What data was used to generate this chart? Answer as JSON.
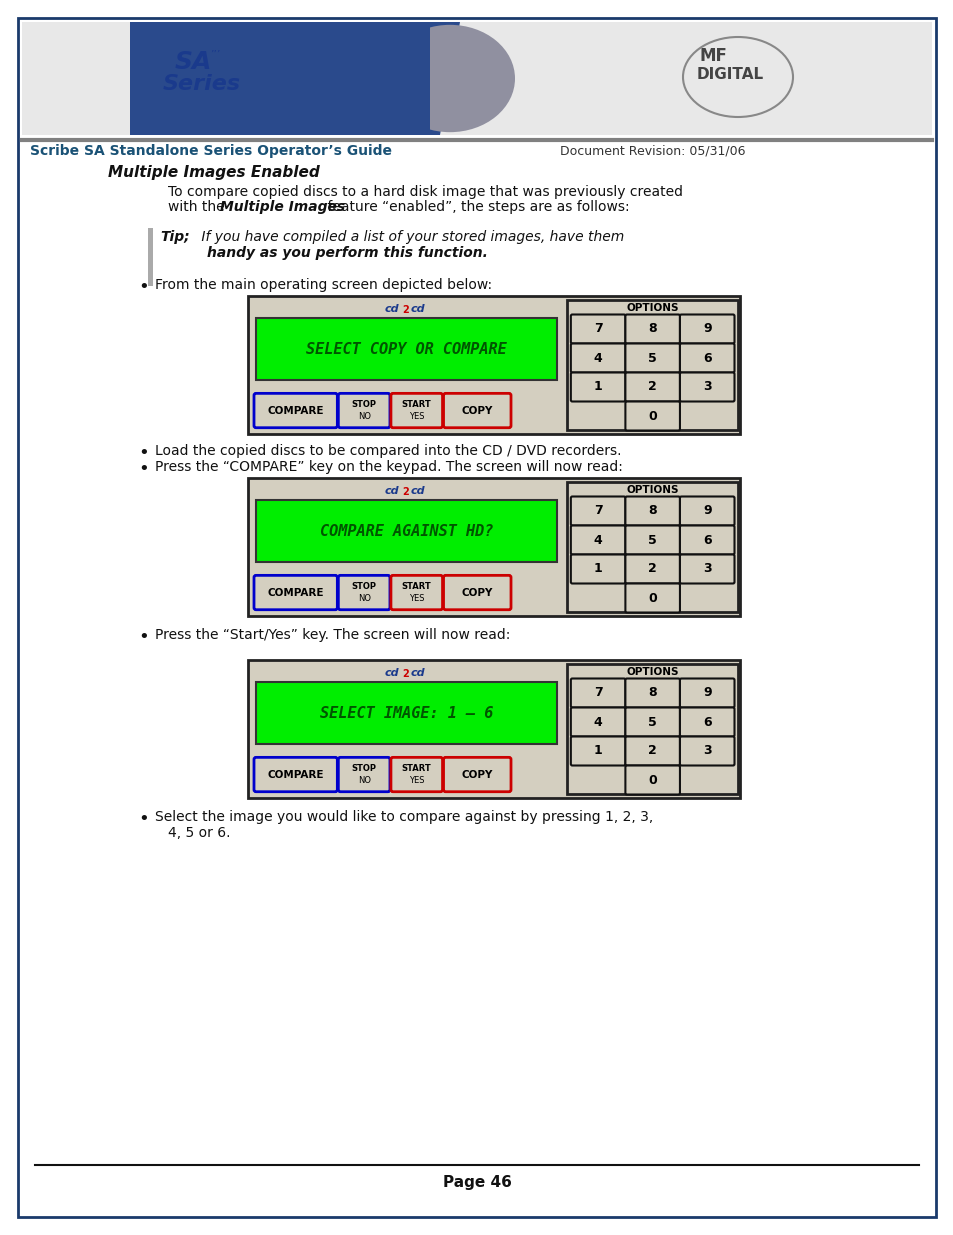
{
  "page_border_color": "#1a3a6b",
  "background_color": "#ffffff",
  "header_bg": "#e8e8e8",
  "header_title": "Scribe SA Standalone Series Operator’s Guide",
  "header_title_color": "#1a5276",
  "header_doc_rev": "Document Revision: 05/31/06",
  "header_doc_rev_color": "#333333",
  "sa_series_text_color": "#1a3a8c",
  "section_title": "Multiple Images Enabled",
  "screen1_text": "SELECT COPY OR COMPARE",
  "screen2_text": "COMPARE AGAINST HD?",
  "screen3_text": "SELECT IMAGE: 1 – 6",
  "bullet1": "From the main operating screen depicted below:",
  "bullet2": "Load the copied discs to be compared into the CD / DVD recorders.",
  "bullet3": "Press the “COMPARE” key on the keypad. The screen will now read:",
  "bullet4": "Press the “Start/Yes” key. The screen will now read:",
  "page_number": "Page 46",
  "screen_bg": "#00ee00",
  "screen_text_color": "#005500",
  "keypad_bg": "#d4cfc0",
  "keypad_border": "#222222",
  "btn_compare_border": "#0000cc",
  "btn_copy_border": "#cc0000",
  "btn_stop_border": "#0000cc",
  "btn_start_border": "#cc0000",
  "btn_bg": "#d4cfc0",
  "cd2cd_color": "#1a3a8c",
  "cd2_red": "#cc0000",
  "blue_wave": "#2a4a8c",
  "grey_wave": "#9090a0"
}
